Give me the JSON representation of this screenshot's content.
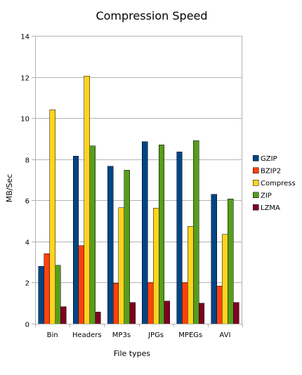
{
  "chart_data": {
    "type": "bar",
    "title": "Compression Speed",
    "xlabel": "File types",
    "ylabel": "MB/Sec",
    "categories": [
      "Bin",
      "Headers",
      "MP3s",
      "JPGs",
      "MPEGs",
      "AVI"
    ],
    "ylim": [
      0,
      14
    ],
    "yticks": [
      0,
      2,
      4,
      6,
      8,
      10,
      12,
      14
    ],
    "grid": true,
    "legend_position": "right",
    "series": [
      {
        "name": "GZIP",
        "color": "#004586",
        "values": [
          2.8,
          8.15,
          7.65,
          8.85,
          8.35,
          6.3
        ]
      },
      {
        "name": "BZIP2",
        "color": "#ff420e",
        "values": [
          3.4,
          3.8,
          1.97,
          2.0,
          2.0,
          1.83
        ]
      },
      {
        "name": "Compress",
        "color": "#ffd320",
        "values": [
          10.4,
          12.05,
          5.65,
          5.62,
          4.73,
          4.35
        ]
      },
      {
        "name": "ZIP",
        "color": "#579d1c",
        "values": [
          2.85,
          8.65,
          7.47,
          8.7,
          8.9,
          6.07
        ]
      },
      {
        "name": "LZMA",
        "color": "#7e0021",
        "values": [
          0.83,
          0.58,
          1.03,
          1.1,
          1.0,
          1.03
        ]
      }
    ]
  }
}
